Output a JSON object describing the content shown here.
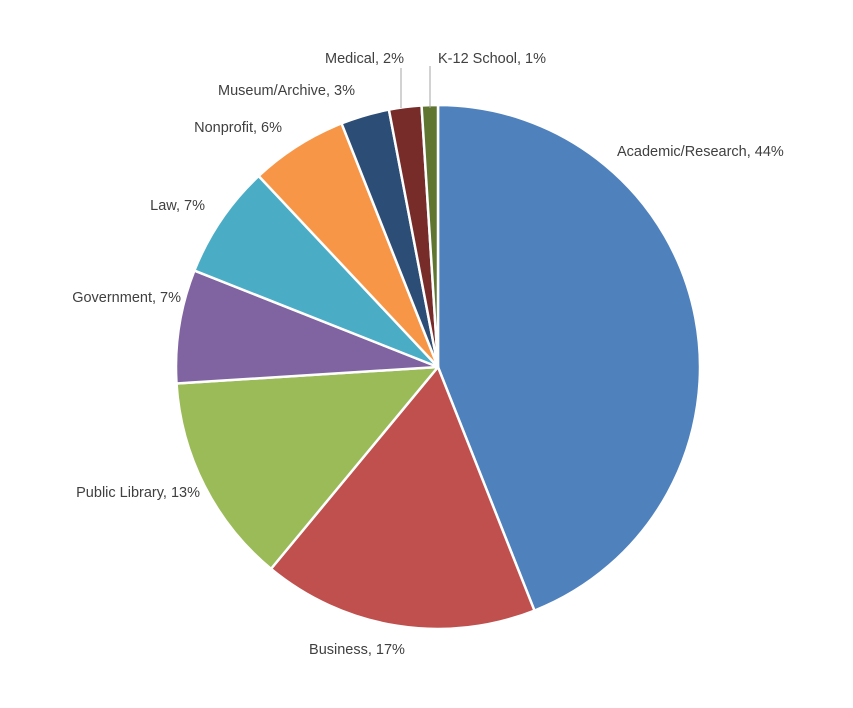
{
  "chart_data": {
    "type": "pie",
    "title": "",
    "start_angle_deg": 0,
    "direction": "clockwise",
    "slices": [
      {
        "label": "Academic/Research",
        "value": 44,
        "display": "Academic/Research, 44%",
        "color": "#4F81BD"
      },
      {
        "label": "Business",
        "value": 17,
        "display": "Business, 17%",
        "color": "#C0504D"
      },
      {
        "label": "Public Library",
        "value": 13,
        "display": "Public Library, 13%",
        "color": "#9BBB59"
      },
      {
        "label": "Government",
        "value": 7,
        "display": "Government, 7%",
        "color": "#8064A2"
      },
      {
        "label": "Law",
        "value": 7,
        "display": "Law, 7%",
        "color": "#4BACC6"
      },
      {
        "label": "Nonprofit",
        "value": 6,
        "display": "Nonprofit, 6%",
        "color": "#F79646"
      },
      {
        "label": "Museum/Archive",
        "value": 3,
        "display": "Museum/Archive, 3%",
        "color": "#2C4D75"
      },
      {
        "label": "Medical",
        "value": 2,
        "display": "Medical, 2%",
        "color": "#772C2A"
      },
      {
        "label": "K-12 School",
        "value": 1,
        "display": "K-12 School, 1%",
        "color": "#5F7530"
      }
    ]
  }
}
